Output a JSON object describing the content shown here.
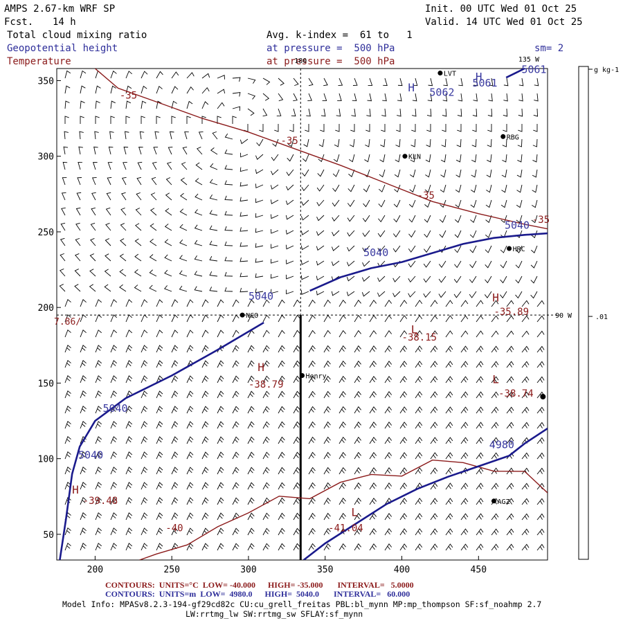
{
  "header": {
    "model": "AMPS 2.67-km WRF SP",
    "fcst_label": "Fcst.",
    "fcst_value": "14 h",
    "init": "Init. 00 UTC Wed 01 Oct 25",
    "valid": "Valid. 14 UTC Wed 01 Oct 25",
    "field1": "Total cloud mixing ratio",
    "field2": "Geopotential height",
    "field3": "Temperature",
    "avg_line": "Avg. k-index =  61 to   1",
    "pres_line_blue": "at pressure =  500 hPa",
    "pres_line_red": "at pressure =  500 hPa",
    "sm": "sm= 2"
  },
  "colors": {
    "height": "#1a1a8c",
    "temp": "#8b1a1a",
    "barb": "#000000"
  },
  "chart_data": {
    "type": "contour",
    "title": "Total cloud mixing ratio / Geopotential height / Temperature at 500 hPa",
    "xlim": [
      175,
      495
    ],
    "ylim": [
      33,
      358
    ],
    "xticks": [
      "200",
      "250",
      "300",
      "350",
      "400",
      "450"
    ],
    "yticks": [
      "50",
      "100",
      "150",
      "200",
      "250",
      "300",
      "350"
    ],
    "crosshair": {
      "x": 334,
      "y": 195
    },
    "axis_marks": {
      "top": "180",
      "right_top": "135 W",
      "right_mid": "90 W",
      "left_mid": "7.86/"
    },
    "stations": [
      {
        "name": "KLN",
        "x": 402,
        "y": 300
      },
      {
        "name": "RBG",
        "x": 466,
        "y": 313
      },
      {
        "name": "HRC",
        "x": 470,
        "y": 239
      },
      {
        "name": "NCO",
        "x": 296,
        "y": 195
      },
      {
        "name": "Henry",
        "x": 335,
        "y": 155
      },
      {
        "name": "AGZ",
        "x": 460,
        "y": 72
      },
      {
        "name": "LVT",
        "x": 425,
        "y": 355
      }
    ],
    "edge_dot": {
      "x": 492,
      "y": 141
    },
    "height_lines": [
      {
        "label": "5040",
        "points": [
          [
            177,
            33
          ],
          [
            181,
            60
          ],
          [
            185,
            90
          ],
          [
            190,
            108
          ],
          [
            200,
            125
          ],
          [
            220,
            140
          ],
          [
            250,
            155
          ],
          [
            280,
            172
          ],
          [
            310,
            190
          ]
        ]
      },
      {
        "label": "5040",
        "points": [
          [
            340,
            211
          ],
          [
            360,
            220
          ],
          [
            380,
            226
          ],
          [
            400,
            230
          ],
          [
            420,
            236
          ],
          [
            440,
            242
          ],
          [
            460,
            246
          ],
          [
            480,
            248
          ],
          [
            495,
            249
          ]
        ]
      },
      {
        "label": "4980",
        "points": [
          [
            336,
            33
          ],
          [
            350,
            44
          ],
          [
            370,
            57
          ],
          [
            390,
            70
          ],
          [
            410,
            80
          ],
          [
            430,
            88
          ],
          [
            450,
            95
          ],
          [
            470,
            102
          ],
          [
            480,
            110
          ],
          [
            495,
            120
          ]
        ]
      },
      {
        "label": "5061",
        "points": [
          [
            468,
            352
          ],
          [
            474,
            355
          ],
          [
            480,
            358
          ]
        ]
      }
    ],
    "height_labels": [
      {
        "text": "5040",
        "x": 189,
        "y": 100
      },
      {
        "text": "5040",
        "x": 205,
        "y": 131
      },
      {
        "text": "5040",
        "x": 300,
        "y": 205
      },
      {
        "text": "5040",
        "x": 375,
        "y": 234
      },
      {
        "text": "5040",
        "x": 467,
        "y": 252
      },
      {
        "text": "4980",
        "x": 457,
        "y": 107
      },
      {
        "text": "5062",
        "x": 418,
        "y": 340
      },
      {
        "text": "5061",
        "x": 446,
        "y": 346
      },
      {
        "text": "5061",
        "x": 478,
        "y": 355
      }
    ],
    "temp_lines": [
      {
        "label": "-35",
        "points": [
          [
            200,
            358
          ],
          [
            215,
            345
          ],
          [
            240,
            336
          ],
          [
            270,
            325
          ],
          [
            300,
            316
          ],
          [
            330,
            305
          ],
          [
            360,
            294
          ],
          [
            390,
            282
          ],
          [
            420,
            270
          ],
          [
            450,
            262
          ],
          [
            480,
            255
          ],
          [
            495,
            252
          ]
        ]
      },
      {
        "label": "-40",
        "points": [
          [
            229,
            33
          ],
          [
            240,
            37
          ],
          [
            260,
            43
          ],
          [
            280,
            55
          ],
          [
            300,
            65
          ],
          [
            320,
            72
          ],
          [
            340,
            77
          ],
          [
            360,
            83
          ],
          [
            380,
            88
          ],
          [
            400,
            92
          ],
          [
            420,
            96
          ],
          [
            440,
            98
          ],
          [
            460,
            94
          ],
          [
            480,
            88
          ],
          [
            495,
            80
          ]
        ]
      }
    ],
    "temp_labels": [
      {
        "text": "-35",
        "x": 216,
        "y": 338
      },
      {
        "text": "-35",
        "x": 321,
        "y": 308
      },
      {
        "text": "-35",
        "x": 410,
        "y": 272
      },
      {
        "text": "-35",
        "x": 485,
        "y": 256
      },
      {
        "text": "-40",
        "x": 246,
        "y": 52
      },
      {
        "text": "-35.89",
        "x": 460,
        "y": 195
      },
      {
        "text": "-38.15",
        "x": 400,
        "y": 178
      },
      {
        "text": "-38.79",
        "x": 300,
        "y": 147
      },
      {
        "text": "-38.74",
        "x": 463,
        "y": 141
      },
      {
        "text": "-41.04",
        "x": 352,
        "y": 52
      },
      {
        "text": "-39.48",
        "x": 192,
        "y": 70
      }
    ],
    "extrema": [
      {
        "text": "H",
        "kind": "height",
        "x": 404,
        "y": 343
      },
      {
        "text": "H",
        "kind": "height",
        "x": 448,
        "y": 350
      },
      {
        "text": "H",
        "kind": "temp",
        "x": 459,
        "y": 204
      },
      {
        "text": "L",
        "kind": "temp",
        "x": 406,
        "y": 183
      },
      {
        "text": "H",
        "kind": "temp",
        "x": 306,
        "y": 158
      },
      {
        "text": "L",
        "kind": "temp",
        "x": 459,
        "y": 150
      },
      {
        "text": "L",
        "kind": "temp",
        "x": 367,
        "y": 62
      },
      {
        "text": "H",
        "kind": "temp",
        "x": 185,
        "y": 77
      }
    ],
    "colorbar": {
      "units": "g kg-1",
      "tick": ".01"
    }
  },
  "footer": {
    "temp_contours": "CONTOURS:  UNITS=°C  LOW= -40.000      HIGH= -35.000       INTERVAL=   5.0000",
    "height_contours": "CONTOURS:  UNITS=m  LOW=  4980.0      HIGH=  5040.0       INTERVAL=   60.000",
    "model_info": "Model Info: MPASv8.2.3-194-gf29cd82c CU:cu_grell_freitas PBL:bl_mynn MP:mp_thompson SF:sf_noahmp 2.7",
    "model_info2": "LW:rrtmg_lw SW:rrtmg_sw SFLAY:sf_mynn"
  }
}
